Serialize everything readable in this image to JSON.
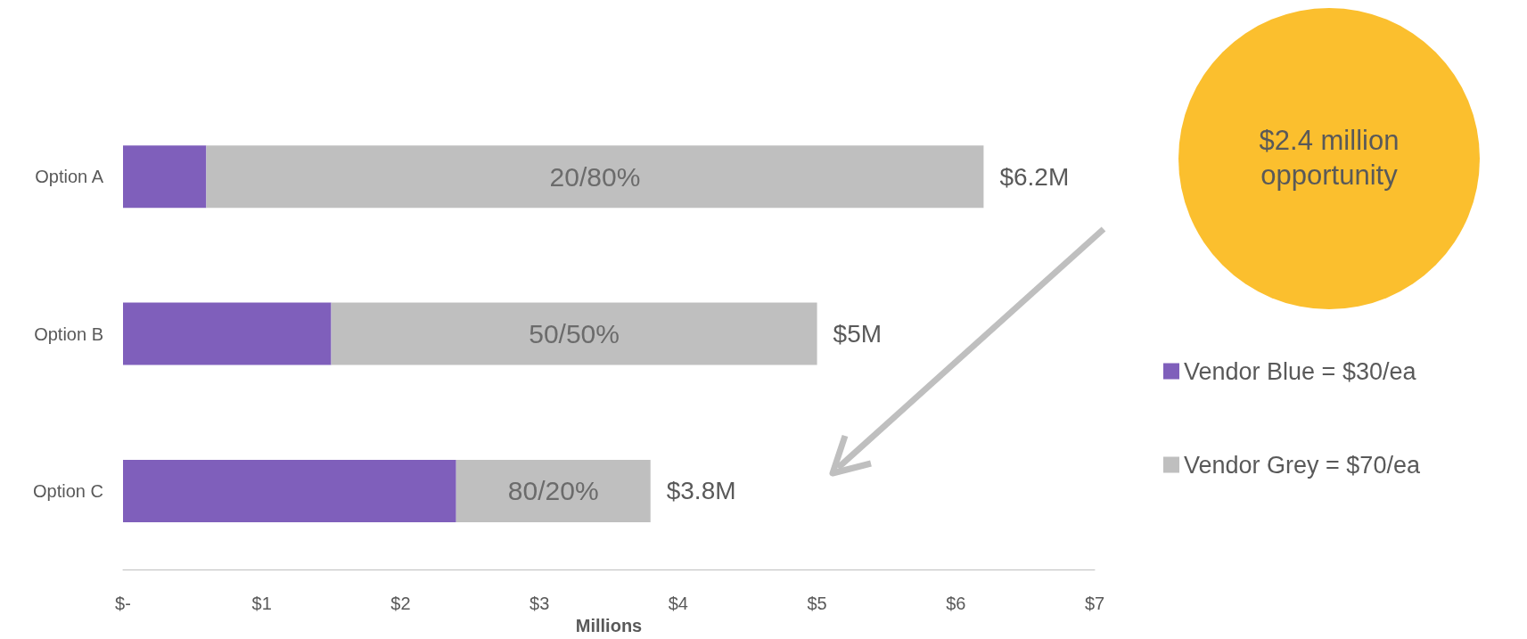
{
  "chart_data": {
    "type": "bar",
    "orientation": "horizontal",
    "stacked": true,
    "categories": [
      "Option A",
      "Option B",
      "Option C"
    ],
    "series": [
      {
        "name": "Vendor Blue = $30/ea",
        "color": "#7f5fbb",
        "values": [
          0.6,
          1.5,
          2.4
        ]
      },
      {
        "name": "Vendor Grey = $70/ea",
        "color": "#bfbfbf",
        "values": [
          5.6,
          3.5,
          1.4
        ]
      }
    ],
    "totals": [
      "$6.2M",
      "$5M",
      "$3.8M"
    ],
    "xlim": [
      0,
      7
    ],
    "xticks": [
      {
        "value": 0,
        "label": "$-"
      },
      {
        "value": 1,
        "label": "$1"
      },
      {
        "value": 2,
        "label": "$2"
      },
      {
        "value": 3,
        "label": "$3"
      },
      {
        "value": 4,
        "label": "$4"
      },
      {
        "value": 5,
        "label": "$5"
      },
      {
        "value": 6,
        "label": "$6"
      },
      {
        "value": 7,
        "label": "$7"
      }
    ],
    "xlabel": "Millions",
    "grid": false,
    "legend": "right",
    "annotations": [
      "20/80%",
      "50/50%",
      "80/20%",
      "$2.4 million opportunity"
    ]
  }
}
